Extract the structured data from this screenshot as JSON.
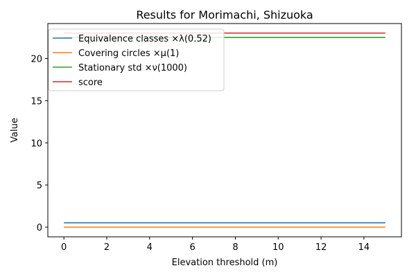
{
  "chart_data": {
    "type": "line",
    "title": "Results for Morimachi, Shizuoka",
    "xlabel": "Elevation threshold (m)",
    "ylabel": "Value",
    "xlim": [
      -0.75,
      15.75
    ],
    "ylim": [
      -1.15,
      24.15
    ],
    "xticks": [
      0,
      2,
      4,
      6,
      8,
      10,
      12,
      14
    ],
    "yticks": [
      0,
      5,
      10,
      15,
      20
    ],
    "grid": false,
    "legend_position": "top-left",
    "series": [
      {
        "name": "Equivalence classes ×λ(0.52)",
        "color": "#1f77b4",
        "x": [
          0,
          15
        ],
        "y": [
          0.52,
          0.52
        ]
      },
      {
        "name": "Covering circles ×μ(1)",
        "color": "#ff7f0e",
        "x": [
          0,
          15
        ],
        "y": [
          0,
          0
        ]
      },
      {
        "name": "Stationary std ×ν(1000)",
        "color": "#2ca02c",
        "x": [
          0,
          15
        ],
        "y": [
          22.5,
          22.5
        ]
      },
      {
        "name": "score",
        "color": "#d62728",
        "x": [
          0,
          15
        ],
        "y": [
          23.02,
          23.02
        ]
      }
    ]
  }
}
